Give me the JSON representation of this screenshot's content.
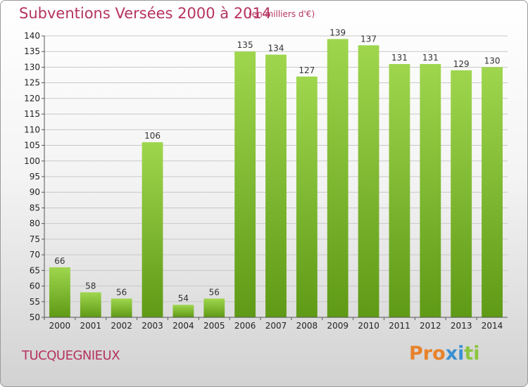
{
  "chart_data": {
    "type": "bar",
    "title": "Subventions Versées 2000 à 2014",
    "subtitle": "(en milliers d'€)",
    "categories": [
      "2000",
      "2001",
      "2002",
      "2003",
      "2004",
      "2005",
      "2006",
      "2007",
      "2008",
      "2009",
      "2010",
      "2011",
      "2012",
      "2013",
      "2014"
    ],
    "values": [
      66,
      58,
      56,
      106,
      54,
      56,
      135,
      134,
      127,
      139,
      137,
      131,
      131,
      129,
      130
    ],
    "ylim": [
      50,
      140
    ],
    "yticks": [
      50,
      55,
      60,
      65,
      70,
      75,
      80,
      85,
      90,
      95,
      100,
      105,
      110,
      115,
      120,
      125,
      130,
      135,
      140
    ],
    "grid": true,
    "bar_color": "#7cbf2e"
  },
  "footer": {
    "location": "TUCQUEGNIEUX",
    "logo_text": "Proxiti",
    "logo_colors": [
      "#e8822a",
      "#e8822a",
      "#e8822a",
      "#3a8fd1",
      "#3a8fd1",
      "#8bc63f",
      "#8bc63f"
    ]
  }
}
